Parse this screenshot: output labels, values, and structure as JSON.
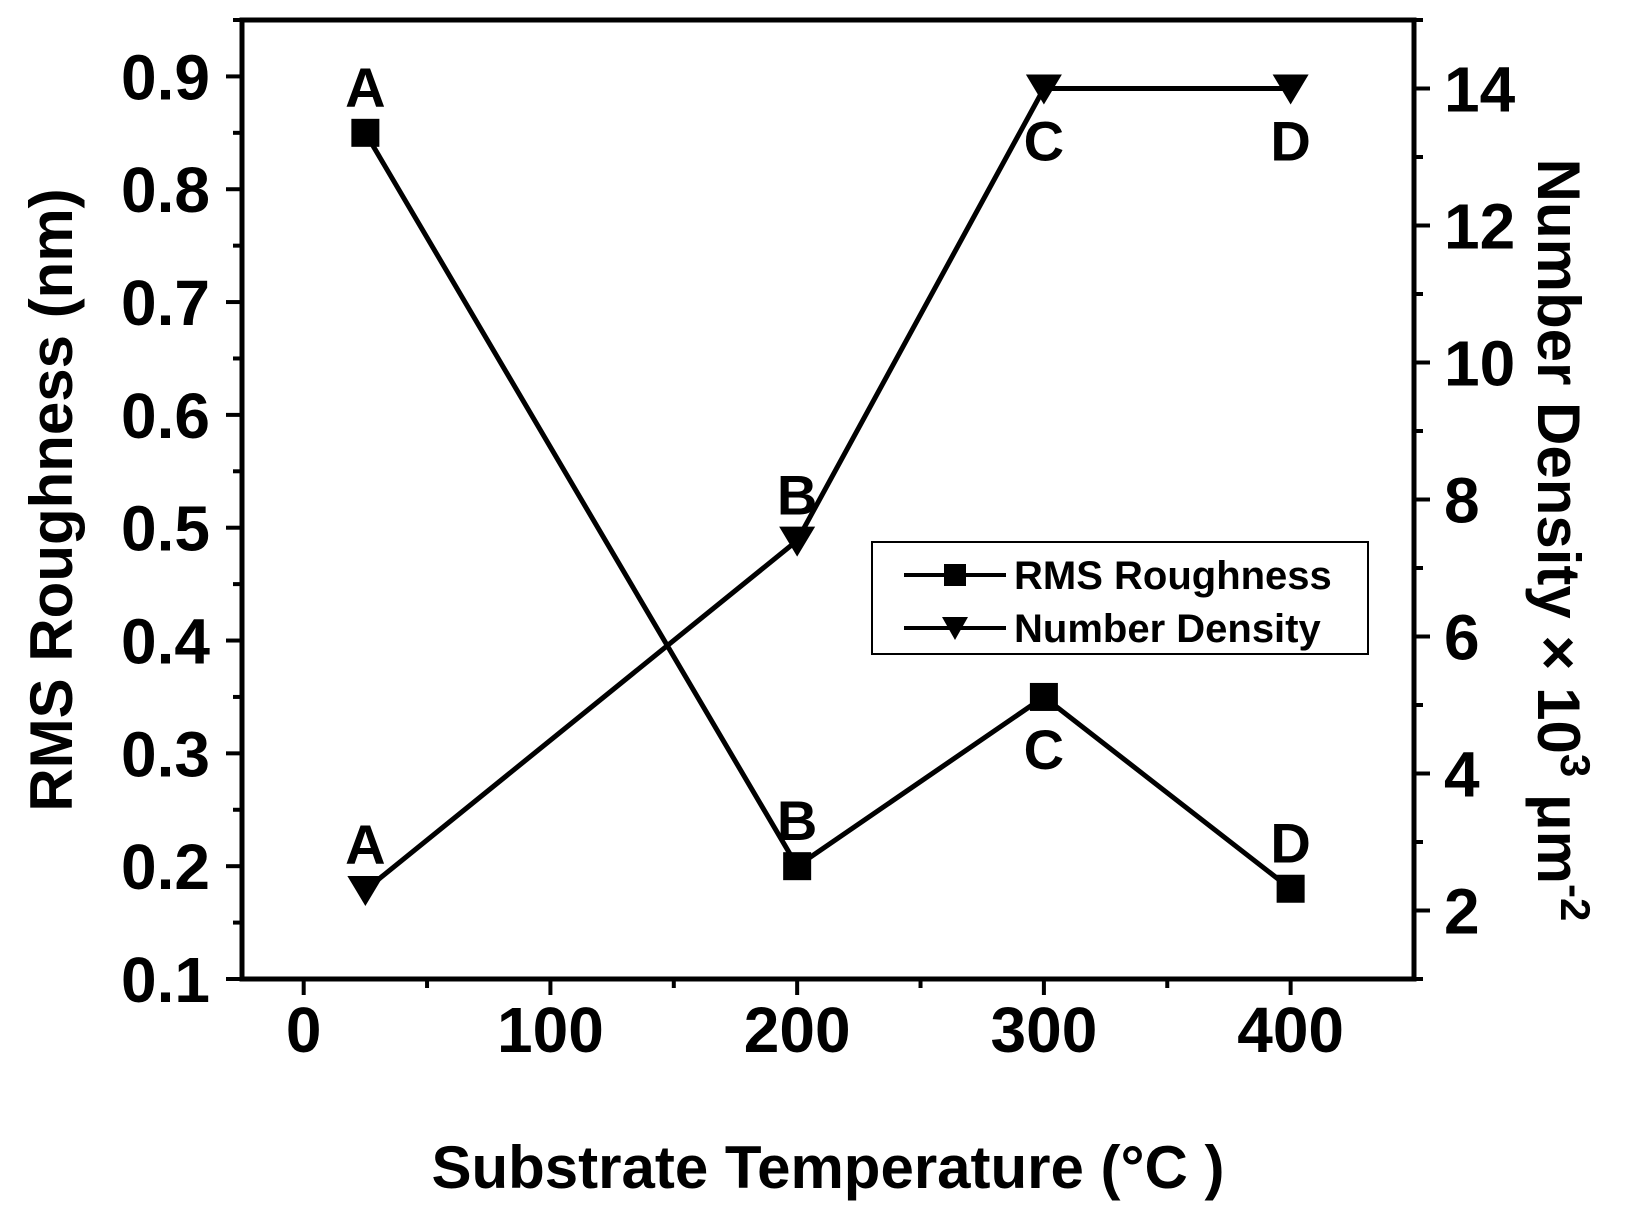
{
  "chart_data": {
    "type": "line",
    "xlabel": "Substrate Temperature (°C )",
    "ylabel": "RMS Roughness (nm)",
    "y2label": "Number Density × 10",
    "y2label_exp": "3",
    "y2label_unit": " μm",
    "y2label_unit_exp": "-2",
    "xlim": [
      -25,
      450
    ],
    "ylim": [
      0.1,
      0.95
    ],
    "y2lim": [
      1,
      15
    ],
    "xticks": [
      0,
      100,
      200,
      300,
      400
    ],
    "xticks_minor": [
      50,
      150,
      250,
      350
    ],
    "yticks": [
      0.1,
      0.2,
      0.3,
      0.4,
      0.5,
      0.6,
      0.7,
      0.8,
      0.9
    ],
    "y2ticks": [
      2,
      4,
      6,
      8,
      10,
      12,
      14
    ],
    "legend_position": "center-right",
    "series": [
      {
        "name": "RMS Roughness",
        "axis": "left",
        "marker": "square",
        "x": [
          25,
          200,
          300,
          400
        ],
        "y": [
          0.85,
          0.2,
          0.35,
          0.18
        ],
        "point_labels": [
          "A",
          "B",
          "C",
          "D"
        ],
        "label_positions": [
          "above",
          "above",
          "below",
          "above"
        ]
      },
      {
        "name": "Number Density",
        "axis": "right",
        "marker": "triangle-down",
        "x": [
          25,
          200,
          300,
          400
        ],
        "y": [
          2.3,
          7.4,
          14.0,
          14.0
        ],
        "point_labels": [
          "A",
          "B",
          "C",
          "D"
        ],
        "label_positions": [
          "above",
          "above",
          "below",
          "below"
        ]
      }
    ]
  }
}
